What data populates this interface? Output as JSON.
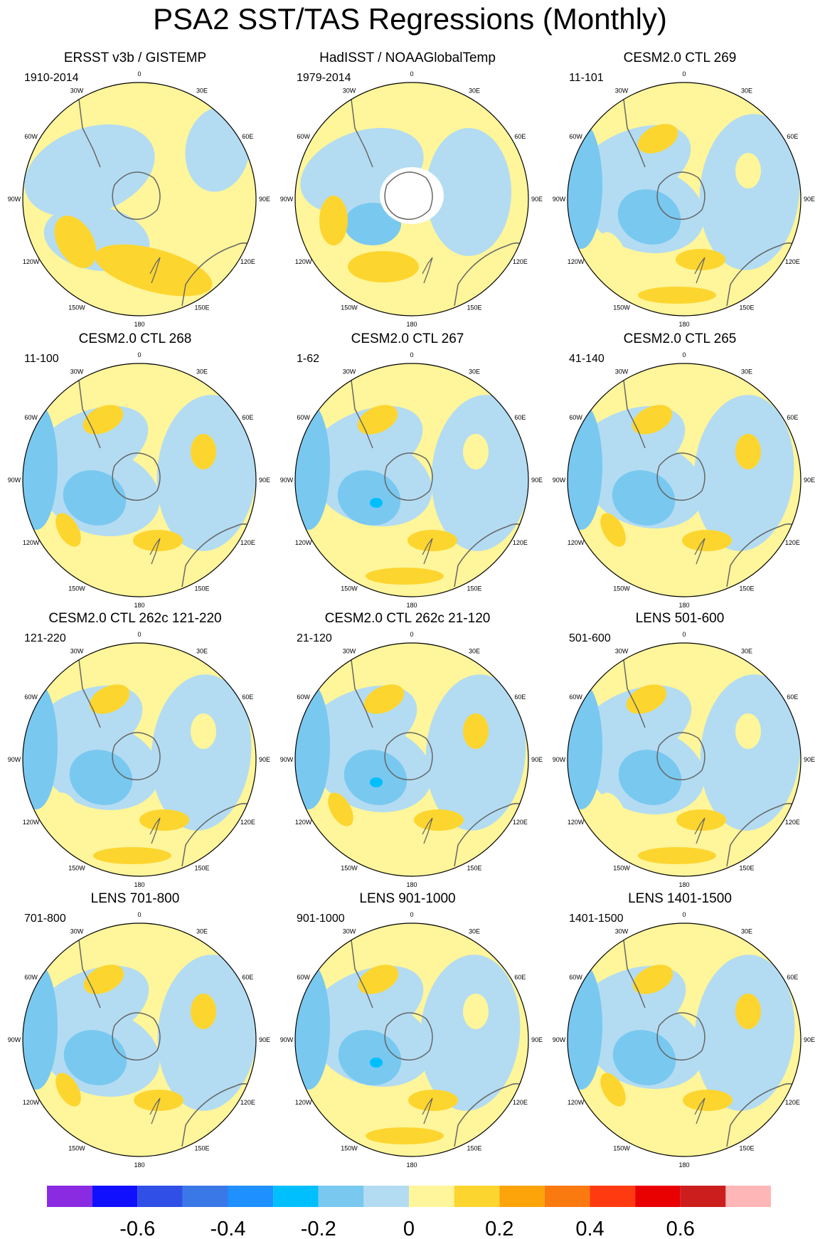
{
  "title": "PSA2 SST/TAS Regressions (Monthly)",
  "panels": [
    {
      "title": "ERSST v3b / GISTEMP",
      "period": "1910-2014"
    },
    {
      "title": "HadISST / NOAAGlobalTemp",
      "period": "1979-2014"
    },
    {
      "title": "CESM2.0 CTL 269",
      "period": "11-101"
    },
    {
      "title": "CESM2.0 CTL 268",
      "period": "11-100"
    },
    {
      "title": "CESM2.0 CTL 267",
      "period": "1-62"
    },
    {
      "title": "CESM2.0 CTL 265",
      "period": "41-140"
    },
    {
      "title": "CESM2.0 CTL 262c 121-220",
      "period": "121-220"
    },
    {
      "title": "CESM2.0 CTL 262c 21-120",
      "period": "21-120"
    },
    {
      "title": "LENS 501-600",
      "period": "501-600"
    },
    {
      "title": "LENS 701-800",
      "period": "701-800"
    },
    {
      "title": "LENS 901-1000",
      "period": "901-1000"
    },
    {
      "title": "LENS 1401-1500",
      "period": "1401-1500"
    }
  ],
  "longitude_labels": {
    "l0": "0",
    "l30e": "30E",
    "l60e": "60E",
    "l90e": "90E",
    "l120e": "120E",
    "l150e": "150E",
    "l180": "180",
    "l150w": "150W",
    "l120w": "120W",
    "l90w": "90W",
    "l60w": "60W",
    "l30w": "30W"
  },
  "colorbar": {
    "colors": [
      "#8a2be2",
      "#1010ff",
      "#2f4fe6",
      "#3a78e8",
      "#1e90ff",
      "#00bfff",
      "#79c8f0",
      "#b3dcf2",
      "#fff59a",
      "#fdd52f",
      "#fca40a",
      "#fb7a10",
      "#ff3a10",
      "#e90000",
      "#cd1e1e",
      "#ffb6b6"
    ],
    "labels": [
      "-0.6",
      "-0.4",
      "-0.2",
      "0",
      "0.2",
      "0.4",
      "0.6"
    ]
  }
}
